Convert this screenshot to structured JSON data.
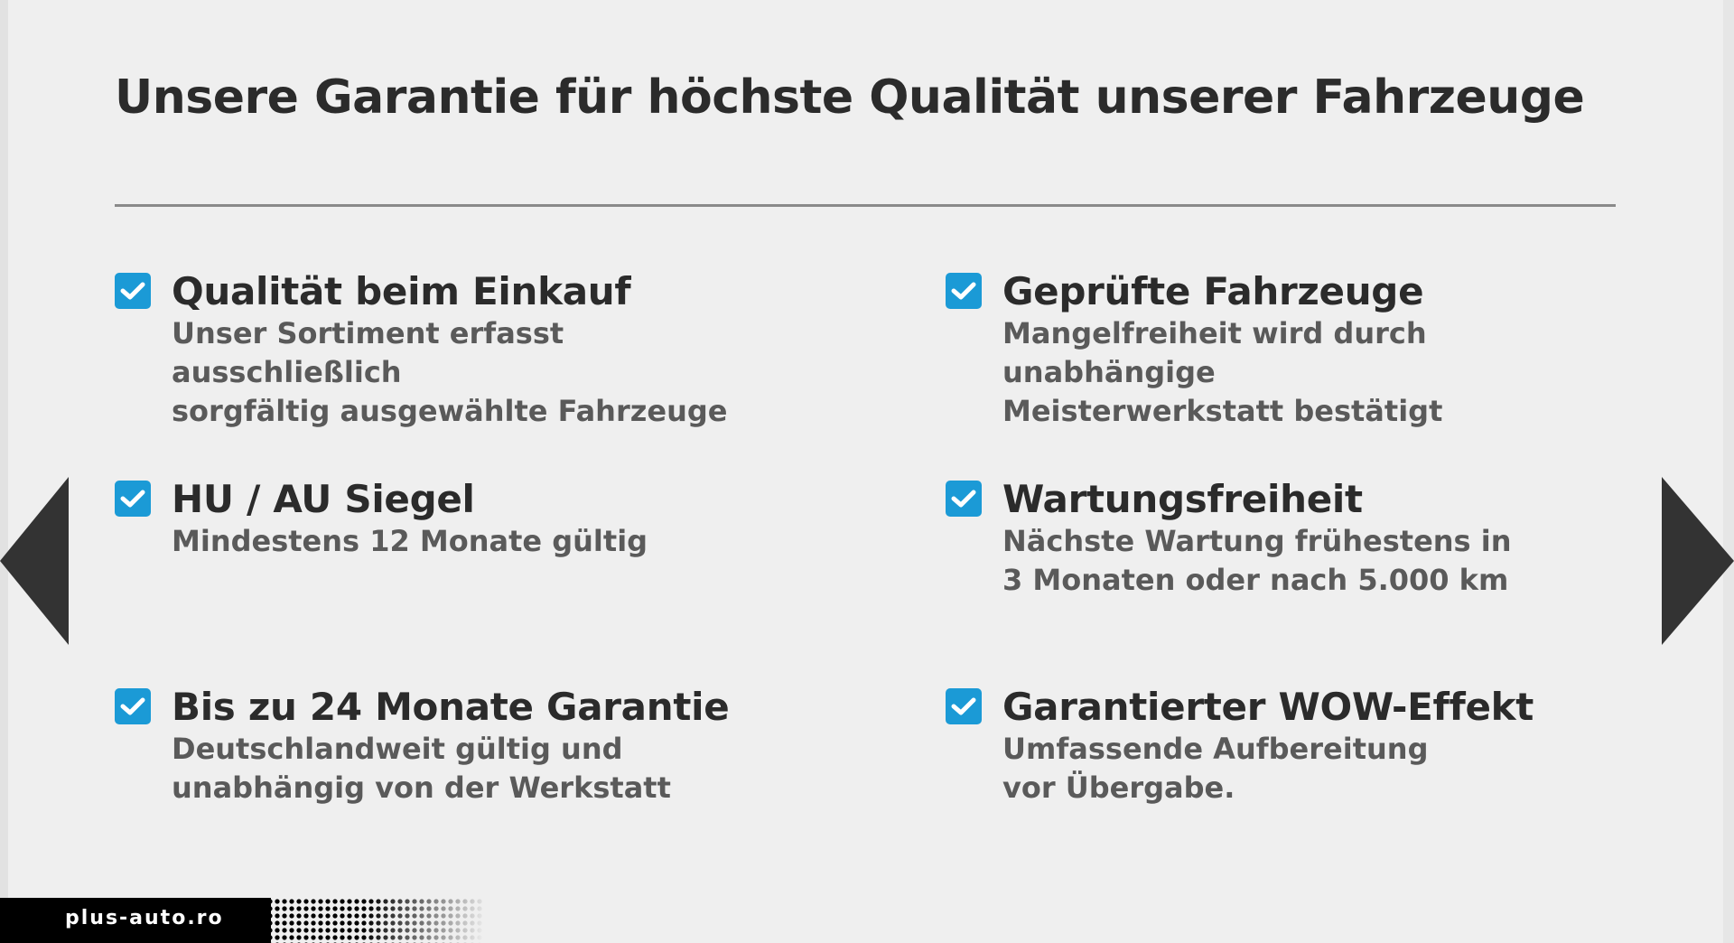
{
  "title": "Unsere Garantie für höchste Qualität unserer Fahrzeuge",
  "accent_color": "#1b9ad6",
  "items": [
    {
      "heading": "Qualität beim Einkauf",
      "text": "Unser Sortiment erfasst ausschließlich\nsorgfältig ausgewählte Fahrzeuge"
    },
    {
      "heading": "Geprüfte Fahrzeuge",
      "text": "Mangelfreiheit wird durch unabhängige\nMeisterwerkstatt bestätigt"
    },
    {
      "heading": "HU / AU Siegel",
      "text": "Mindestens 12 Monate gültig"
    },
    {
      "heading": "Wartungsfreiheit",
      "text": "Nächste Wartung frühestens in\n3 Monaten oder nach 5.000 km"
    },
    {
      "heading": "Bis zu 24 Monate Garantie",
      "text": "Deutschlandweit gültig und\nunabhängig von der Werkstatt"
    },
    {
      "heading": "Garantierter WOW-Effekt",
      "text": "Umfassende Aufbereitung\nvor Übergabe."
    }
  ],
  "watermark": "plus-auto.ro"
}
